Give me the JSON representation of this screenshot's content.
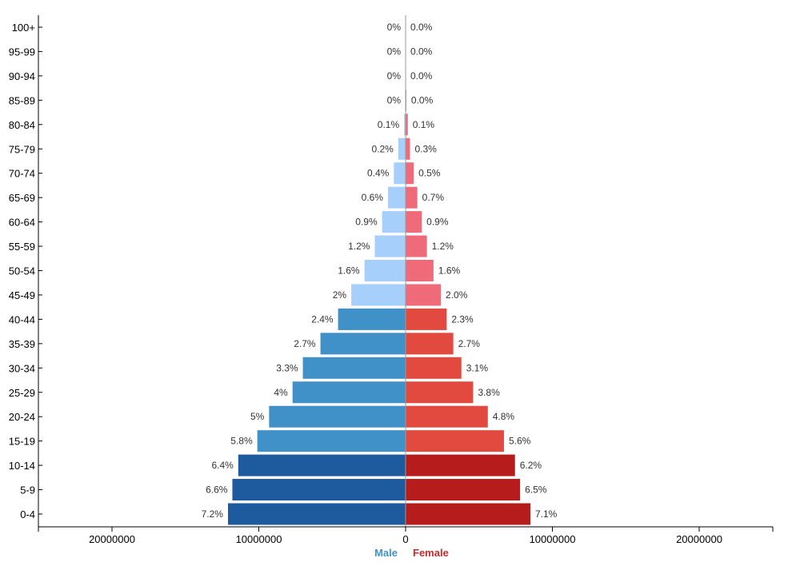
{
  "chart_data": {
    "type": "bar",
    "orientation": "horizontal",
    "subtype": "population-pyramid",
    "categories": [
      "100+",
      "95-99",
      "90-94",
      "85-89",
      "80-84",
      "75-79",
      "70-74",
      "65-69",
      "60-64",
      "55-59",
      "50-54",
      "45-49",
      "40-44",
      "35-39",
      "30-34",
      "25-29",
      "20-24",
      "15-19",
      "10-14",
      "5-9",
      "0-4"
    ],
    "series": [
      {
        "name": "Male",
        "side": "left",
        "values": [
          0,
          0,
          0,
          0,
          100000,
          500000,
          800000,
          1200000,
          1600000,
          2100000,
          2800000,
          3700000,
          4600000,
          5800000,
          7000000,
          7700000,
          9300000,
          10100000,
          11400000,
          11800000,
          12100000
        ],
        "labels": [
          "0%",
          "0%",
          "0%",
          "0%",
          "0.1%",
          "0.2%",
          "0.4%",
          "0.6%",
          "0.9%",
          "1.2%",
          "1.6%",
          "2%",
          "2.4%",
          "2.7%",
          "3.3%",
          "4%",
          "5%",
          "5.8%",
          "6.4%",
          "6.6%",
          "7.2%"
        ]
      },
      {
        "name": "Female",
        "side": "right",
        "values": [
          0,
          0,
          0,
          50000,
          150000,
          300000,
          550000,
          800000,
          1100000,
          1450000,
          1900000,
          2400000,
          2800000,
          3250000,
          3800000,
          4600000,
          5600000,
          6700000,
          7450000,
          7800000,
          8500000
        ],
        "labels": [
          "0.0%",
          "0.0%",
          "0.0%",
          "0.0%",
          "0.1%",
          "0.3%",
          "0.5%",
          "0.7%",
          "0.9%",
          "1.2%",
          "1.6%",
          "2.0%",
          "2.3%",
          "2.7%",
          "3.1%",
          "3.8%",
          "4.8%",
          "5.6%",
          "6.2%",
          "6.5%",
          "7.1%"
        ]
      }
    ],
    "xlim": [
      -25000000,
      25000000
    ],
    "x_ticks": [
      {
        "value": -20000000,
        "label": "20000000"
      },
      {
        "value": -10000000,
        "label": "10000000"
      },
      {
        "value": 0,
        "label": "0"
      },
      {
        "value": 10000000,
        "label": "10000000"
      },
      {
        "value": 20000000,
        "label": "20000000"
      }
    ],
    "legend": {
      "position": "bottom",
      "items": [
        "Male",
        "Female"
      ]
    },
    "grid": false,
    "title": "",
    "xlabel": "",
    "ylabel": ""
  },
  "colors": {
    "male_old": "#a6cffb",
    "male_mid": "#4191c9",
    "male_young": "#1e5a9e",
    "female_old": "#f06b7a",
    "female_mid": "#e34a3f",
    "female_young": "#b71c1c",
    "male_legend": "#4191c9",
    "female_legend": "#cc2a2a",
    "axis": "#000000"
  }
}
